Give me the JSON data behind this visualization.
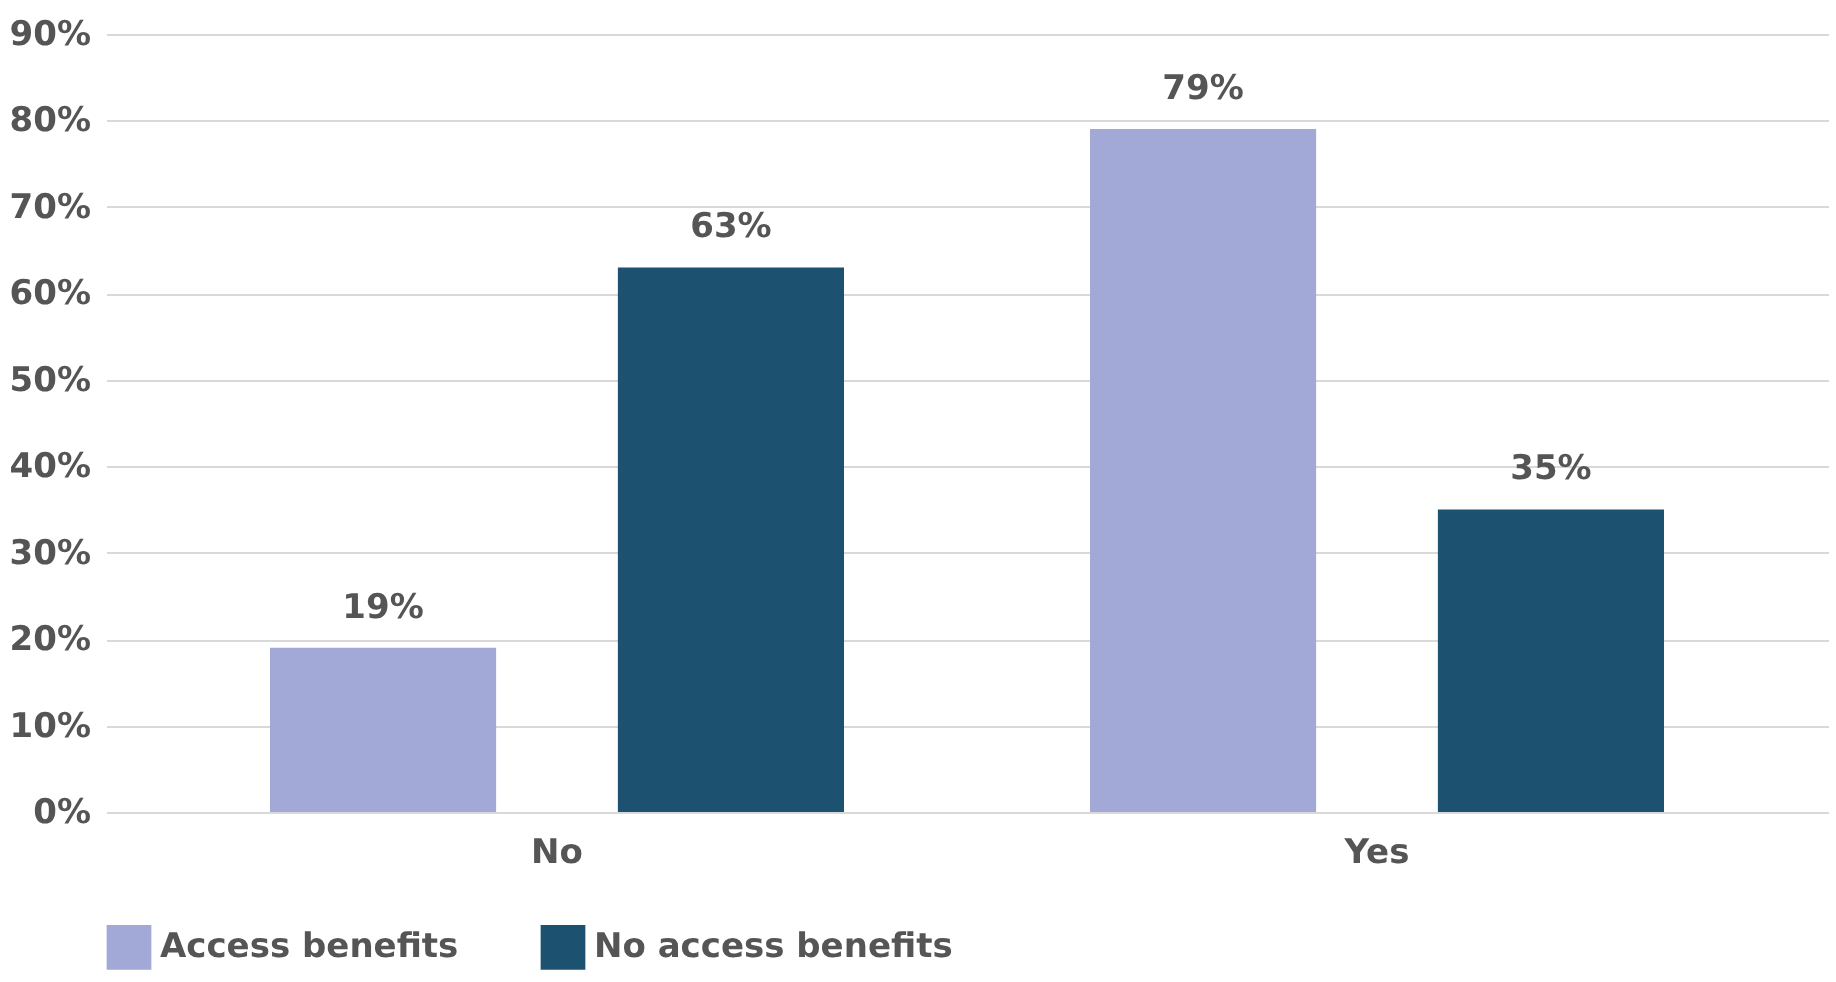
{
  "chart_data": {
    "type": "bar",
    "categories": [
      "No",
      "Yes"
    ],
    "series": [
      {
        "name": "Access benefits",
        "color": "#a2a9d6",
        "values": [
          19,
          79
        ],
        "value_labels": [
          "19%",
          "79%"
        ]
      },
      {
        "name": "No access benefits",
        "color": "#1c5270",
        "values": [
          63,
          35
        ],
        "value_labels": [
          "63%",
          "35%"
        ]
      }
    ],
    "ylim": [
      0,
      90
    ],
    "yticks": [
      {
        "value": 0,
        "label": "0%"
      },
      {
        "value": 10,
        "label": "10%"
      },
      {
        "value": 20,
        "label": "20%"
      },
      {
        "value": 30,
        "label": "30%"
      },
      {
        "value": 40,
        "label": "40%"
      },
      {
        "value": 50,
        "label": "50%"
      },
      {
        "value": 60,
        "label": "60%"
      },
      {
        "value": 70,
        "label": "70%"
      },
      {
        "value": 80,
        "label": "80%"
      },
      {
        "value": 90,
        "label": "90%"
      }
    ],
    "grid": "y",
    "legend": "bottom"
  }
}
